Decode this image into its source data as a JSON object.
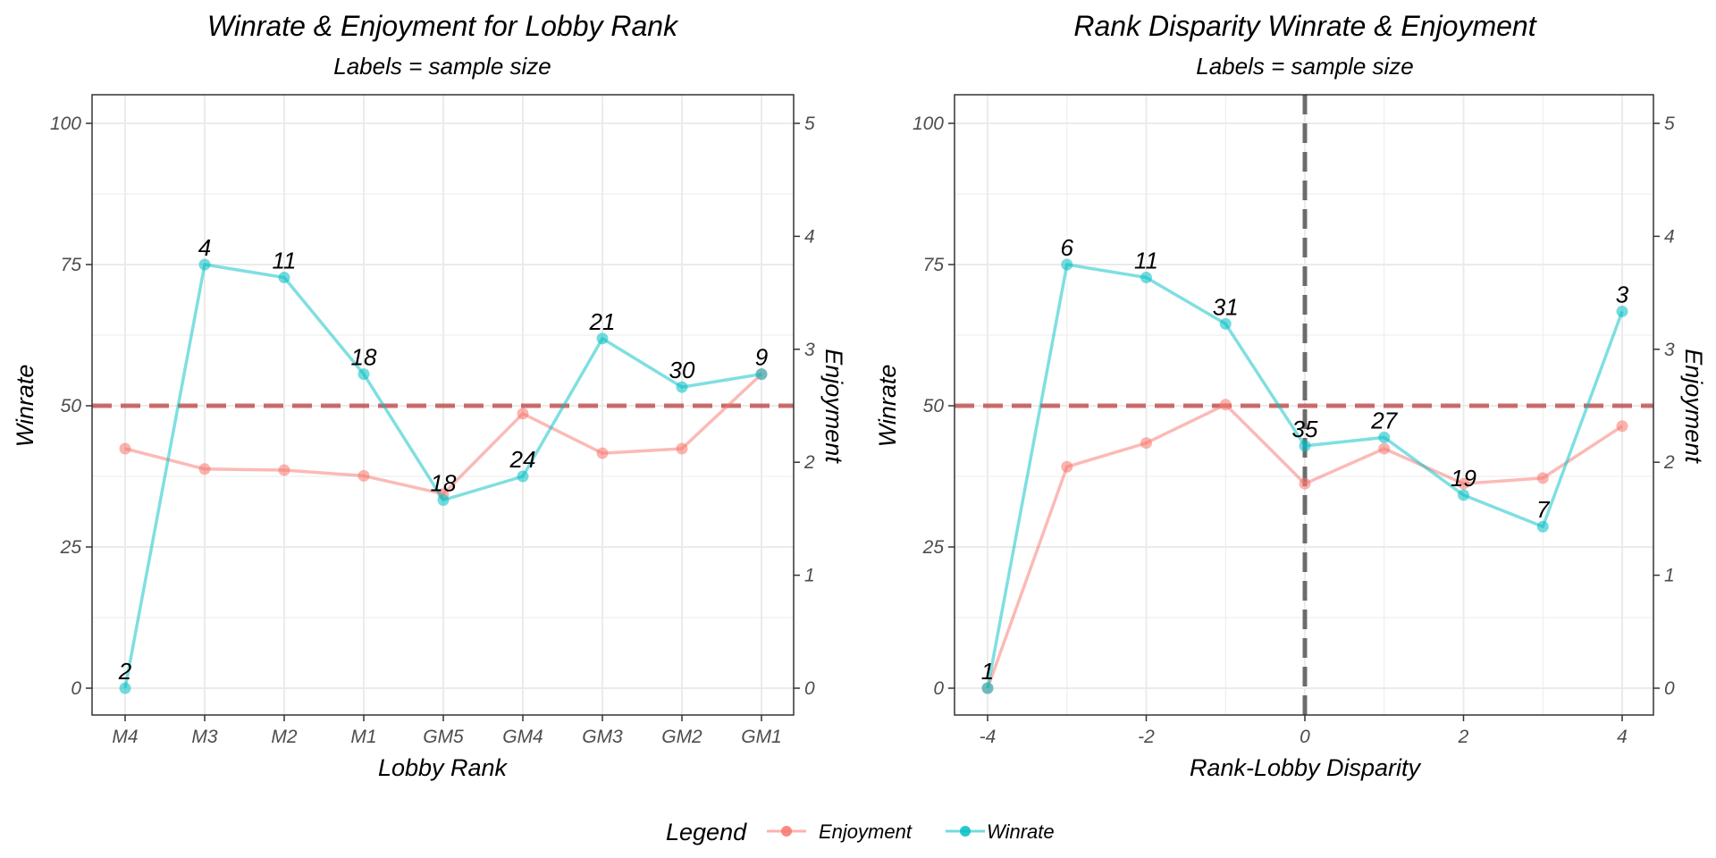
{
  "colors": {
    "enjoyment": "#F8766D",
    "winrate": "#00BFC4",
    "reference_line": "#B22222",
    "zero_line": "#555555",
    "grid": "#EBEBEB",
    "panel_border": "#333333"
  },
  "legend": {
    "title": "Legend",
    "position": "bottom",
    "entries": [
      {
        "key": "enjoyment",
        "label": "Enjoyment"
      },
      {
        "key": "winrate",
        "label": "Winrate"
      }
    ]
  },
  "chart_data": [
    {
      "type": "line",
      "title": "Winrate & Enjoyment for Lobby Rank",
      "subtitle": "Labels = sample size",
      "xlabel": "Lobby Rank",
      "ylabel": "Winrate",
      "y2label": "Enjoyment",
      "x_type": "categorical",
      "categories": [
        "M4",
        "M3",
        "M2",
        "M1",
        "GM5",
        "GM4",
        "GM3",
        "GM2",
        "GM1"
      ],
      "ylim": [
        0,
        100
      ],
      "yticks": [
        0,
        25,
        50,
        75,
        100
      ],
      "y2lim": [
        0,
        5
      ],
      "y2ticks": [
        0,
        1,
        2,
        3,
        4,
        5
      ],
      "hline": 50,
      "grid": true,
      "series": [
        {
          "name": "Winrate",
          "key": "winrate",
          "axis": "left",
          "values": [
            0,
            75,
            72.7,
            55.6,
            33.3,
            37.5,
            61.9,
            53.3,
            55.6
          ],
          "labels": [
            "2",
            "4",
            "11",
            "18",
            "18",
            "24",
            "21",
            "30",
            "9"
          ]
        },
        {
          "name": "Enjoyment",
          "key": "enjoyment",
          "axis": "right",
          "values": [
            2.12,
            1.94,
            1.93,
            1.88,
            1.72,
            2.43,
            2.08,
            2.12,
            2.78
          ]
        }
      ]
    },
    {
      "type": "line",
      "title": "Rank Disparity Winrate & Enjoyment",
      "subtitle": "Labels = sample size",
      "xlabel": "Rank-Lobby Disparity",
      "ylabel": "Winrate",
      "y2label": "Enjoyment",
      "x_type": "numeric",
      "xlim": [
        -4.3,
        4.3
      ],
      "xticks": [
        -4,
        -2,
        0,
        2,
        4
      ],
      "ylim": [
        0,
        100
      ],
      "yticks": [
        0,
        25,
        50,
        75,
        100
      ],
      "y2lim": [
        0,
        5
      ],
      "y2ticks": [
        0,
        1,
        2,
        3,
        4,
        5
      ],
      "hline": 50,
      "vline": 0,
      "grid": true,
      "series": [
        {
          "name": "Winrate",
          "key": "winrate",
          "axis": "left",
          "x": [
            -4,
            -3,
            -2,
            -1,
            0,
            1,
            2,
            3,
            4
          ],
          "values": [
            0,
            75,
            72.7,
            64.5,
            42.9,
            44.4,
            34.2,
            28.6,
            66.7
          ],
          "labels": [
            "1",
            "6",
            "11",
            "31",
            "35",
            "27",
            "19",
            "7",
            "3"
          ]
        },
        {
          "name": "Enjoyment",
          "key": "enjoyment",
          "axis": "right",
          "x": [
            -4,
            -3,
            -2,
            -1,
            0,
            1,
            2,
            3,
            4
          ],
          "values": [
            0,
            1.96,
            2.17,
            2.51,
            1.81,
            2.12,
            1.81,
            1.86,
            2.32
          ]
        }
      ]
    }
  ]
}
